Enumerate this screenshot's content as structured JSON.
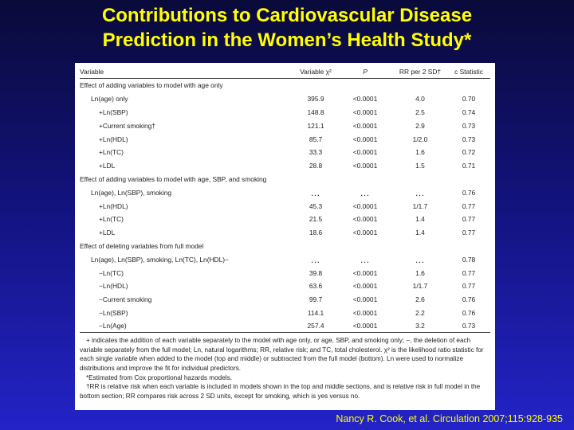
{
  "title": {
    "line1": "Contributions to Cardiovascular Disease",
    "line2": "Prediction in the Women’s Health Study*"
  },
  "table": {
    "headers": [
      "Variable",
      "Variable χ²",
      "P",
      "RR per 2 SD†",
      "c Statistic"
    ],
    "sections": [
      {
        "label": "Effect of adding variables to model with age only",
        "rows": [
          {
            "variable": "Ln(age) only",
            "indent": 1,
            "chi2": "395.9",
            "p": "<0.0001",
            "rr": "4.0",
            "c": "0.70"
          },
          {
            "variable": "+Ln(SBP)",
            "indent": 2,
            "chi2": "148.8",
            "p": "<0.0001",
            "rr": "2.5",
            "c": "0.74"
          },
          {
            "variable": "+Current smoking†",
            "indent": 2,
            "chi2": "121.1",
            "p": "<0.0001",
            "rr": "2.9",
            "c": "0.73"
          },
          {
            "variable": "+Ln(HDL)",
            "indent": 2,
            "chi2": "85.7",
            "p": "<0.0001",
            "rr": "1/2.0",
            "c": "0.73"
          },
          {
            "variable": "+Ln(TC)",
            "indent": 2,
            "chi2": "33.3",
            "p": "<0.0001",
            "rr": "1.6",
            "c": "0.72"
          },
          {
            "variable": "+LDL",
            "indent": 2,
            "chi2": "28.8",
            "p": "<0.0001",
            "rr": "1.5",
            "c": "0.71"
          }
        ]
      },
      {
        "label": "Effect of adding variables to model with age, SBP, and smoking",
        "rows": [
          {
            "variable": "Ln(age), Ln(SBP), smoking",
            "indent": 1,
            "chi2": "…",
            "p": "…",
            "rr": "…",
            "c": "0.76"
          },
          {
            "variable": "+Ln(HDL)",
            "indent": 2,
            "chi2": "45.3",
            "p": "<0.0001",
            "rr": "1/1.7",
            "c": "0.77"
          },
          {
            "variable": "+Ln(TC)",
            "indent": 2,
            "chi2": "21.5",
            "p": "<0.0001",
            "rr": "1.4",
            "c": "0.77"
          },
          {
            "variable": "+LDL",
            "indent": 2,
            "chi2": "18.6",
            "p": "<0.0001",
            "rr": "1.4",
            "c": "0.77"
          }
        ]
      },
      {
        "label": "Effect of deleting variables from full model",
        "rows": [
          {
            "variable": "Ln(age), Ln(SBP), smoking, Ln(TC), Ln(HDL)−",
            "indent": 1,
            "chi2": "…",
            "p": "…",
            "rr": "…",
            "c": "0.78"
          },
          {
            "variable": "−Ln(TC)",
            "indent": 2,
            "chi2": "39.8",
            "p": "<0.0001",
            "rr": "1.6",
            "c": "0.77"
          },
          {
            "variable": "−Ln(HDL)",
            "indent": 2,
            "chi2": "63.6",
            "p": "<0.0001",
            "rr": "1/1.7",
            "c": "0.77"
          },
          {
            "variable": "−Current smoking",
            "indent": 2,
            "chi2": "99.7",
            "p": "<0.0001",
            "rr": "2.6",
            "c": "0.76"
          },
          {
            "variable": "−Ln(SBP)",
            "indent": 2,
            "chi2": "114.1",
            "p": "<0.0001",
            "rr": "2.2",
            "c": "0.76"
          },
          {
            "variable": "−Ln(Age)",
            "indent": 2,
            "chi2": "257.4",
            "p": "<0.0001",
            "rr": "3.2",
            "c": "0.73"
          }
        ]
      }
    ],
    "notes": [
      "+ indicates the addition of each variable separately to the model with age only, or age, SBP, and smoking only; −, the deletion of each variable separately from the full model; Ln, natural logarithms; RR, relative risk; and TC, total cholesterol. χ² is the likelihood ratio statistic for each single variable when added to the model (top and middle) or subtracted from the full model (bottom). Ln were used to normalize distributions and improve the fit for individual predictors.",
      "*Estimated from Cox proportional hazards models.",
      "†RR is relative risk when each variable is included in models shown in the top and middle sections, and is relative risk in full model in the bottom section; RR compares risk across 2 SD units, except for smoking, which is yes versus no."
    ]
  },
  "citation": "Nancy R. Cook, et al. Circulation 2007;115:928-935"
}
